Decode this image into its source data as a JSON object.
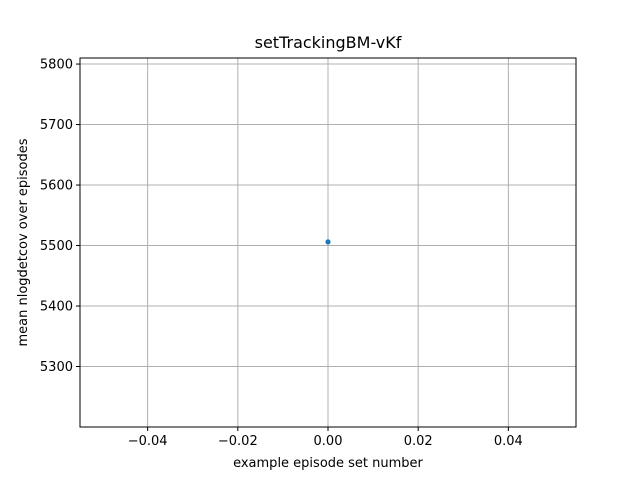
{
  "chart_data": {
    "type": "scatter",
    "title": "setTrackingBM-vKf",
    "xlabel": "example episode set number",
    "ylabel": "mean nlogdetcov over episodes",
    "xlim": [
      -0.055,
      0.055
    ],
    "ylim": [
      5200,
      5810
    ],
    "xticks": [
      -0.04,
      -0.02,
      0.0,
      0.02,
      0.04
    ],
    "xtick_labels": [
      "−0.04",
      "−0.02",
      "0.00",
      "0.02",
      "0.04"
    ],
    "yticks": [
      5300,
      5400,
      5500,
      5600,
      5700,
      5800
    ],
    "ytick_labels": [
      "5300",
      "5400",
      "5500",
      "5600",
      "5700",
      "5800"
    ],
    "grid": true,
    "series": [
      {
        "x": [
          0
        ],
        "y": [
          5506
        ],
        "color": "#1f77b4"
      }
    ]
  }
}
